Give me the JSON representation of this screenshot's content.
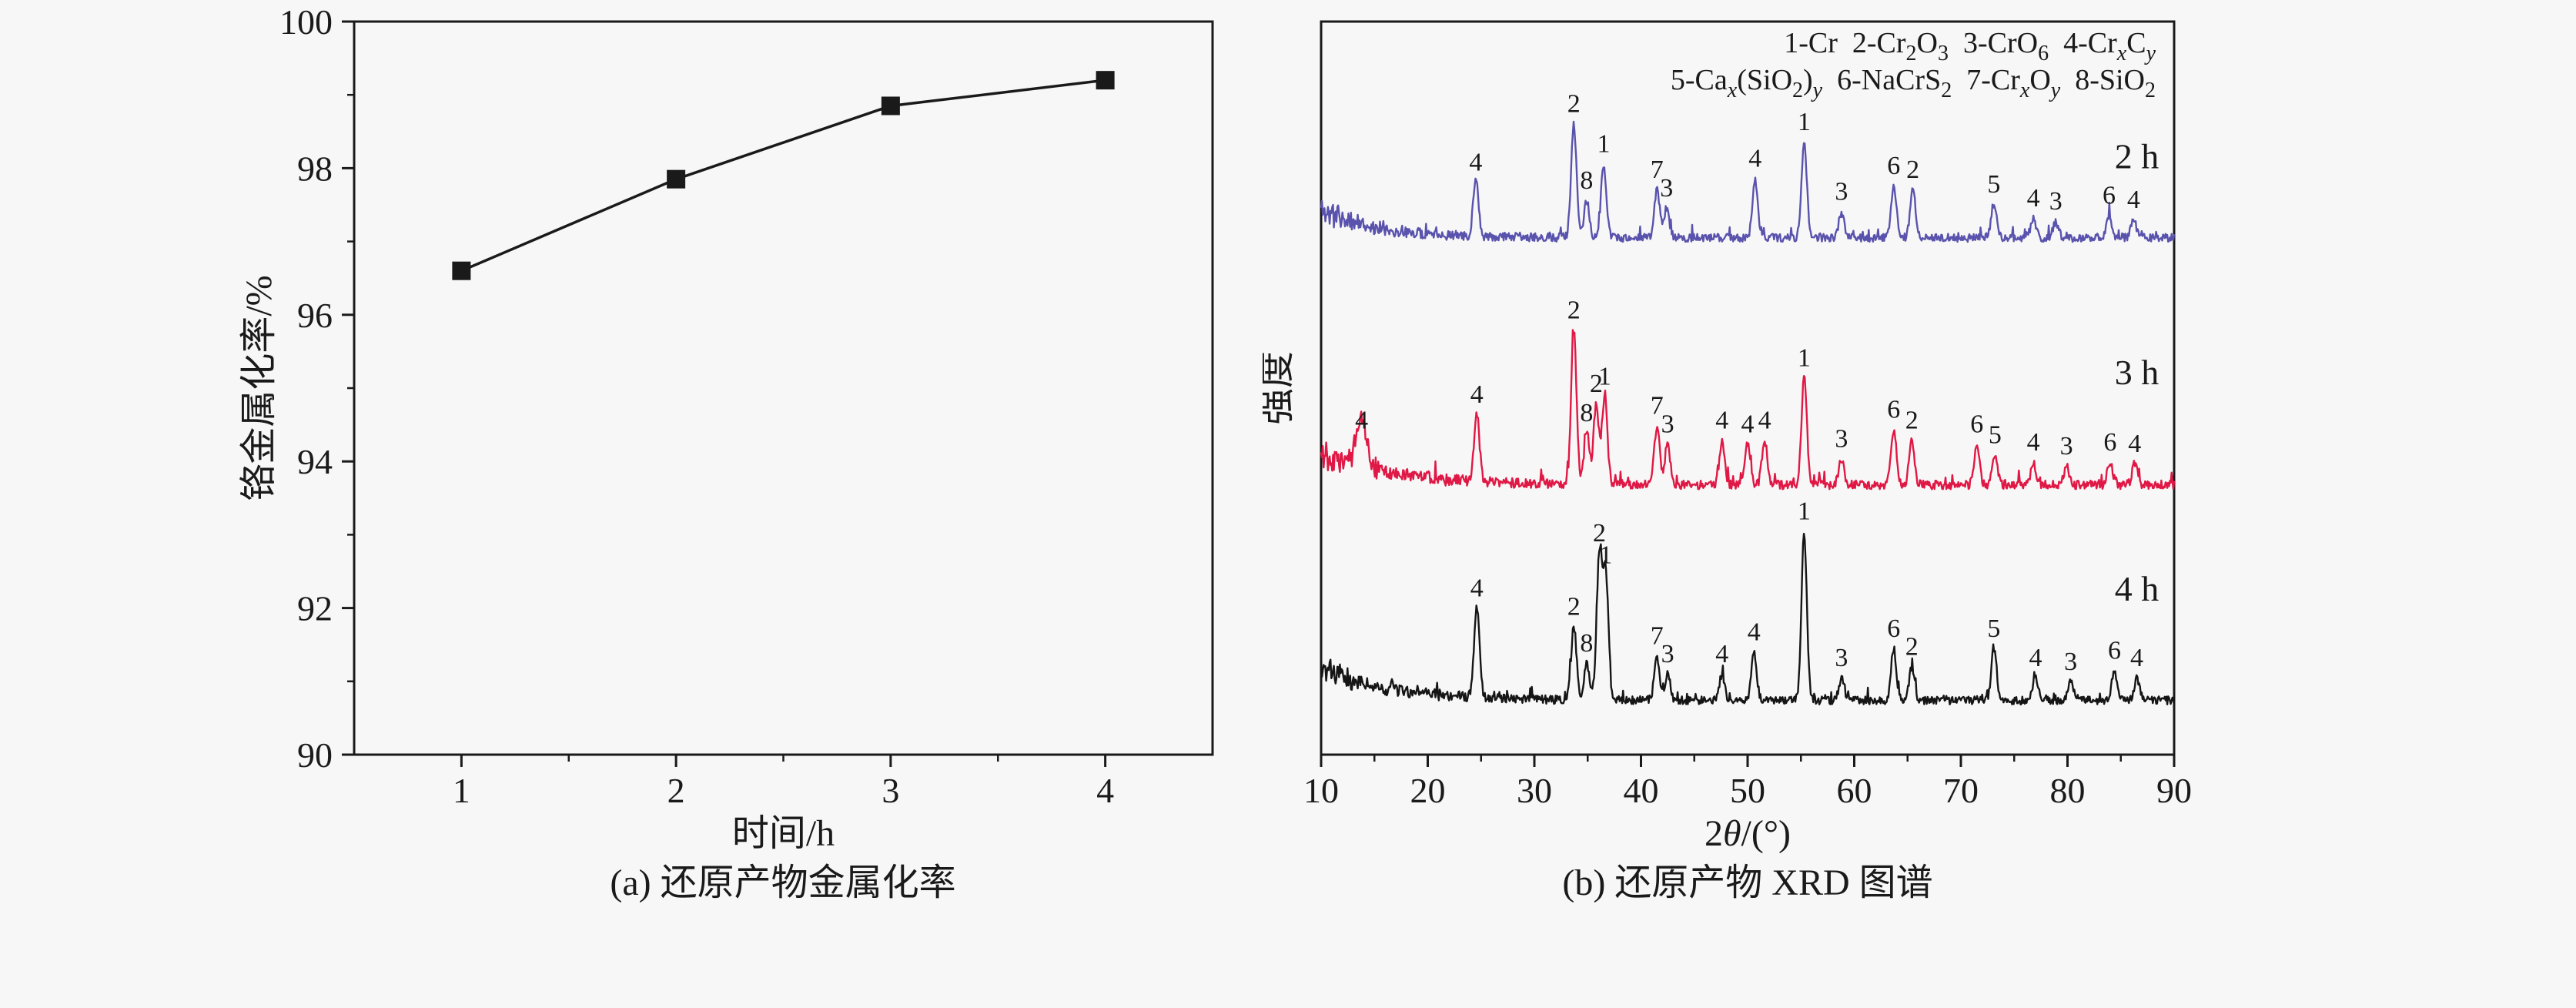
{
  "page": {
    "background": "#f7f7f7",
    "text_color": "#1a1a1a"
  },
  "chart_data": [
    {
      "id": "metallization-rate",
      "type": "line",
      "caption": "(a) 还原产物金属化率",
      "xlabel": "时间/h",
      "ylabel": "铬金属化率/%",
      "x": [
        1,
        2,
        3,
        4
      ],
      "values": [
        96.6,
        97.85,
        98.85,
        99.2
      ],
      "xlim": [
        0.5,
        4.5
      ],
      "ylim": [
        90,
        100
      ],
      "xticks": [
        1,
        2,
        3,
        4
      ],
      "yticks": [
        90,
        92,
        94,
        96,
        98,
        100
      ],
      "y_minor_ticks": [
        91,
        93,
        95,
        97,
        99
      ],
      "x_minor_ticks": [
        1.5,
        2.5,
        3.5
      ],
      "grid": false,
      "legend_position": "none",
      "marker": "square",
      "line_color": "#1a1a1a"
    },
    {
      "id": "xrd-patterns",
      "type": "line",
      "variant": "xrd",
      "caption": "(b) 还原产物 XRD 图谱",
      "xlabel_plain": "2θ/(°)",
      "xlabel_segments": [
        {
          "t": "2"
        },
        {
          "t": "θ",
          "it": true
        },
        {
          "t": "/(°)"
        }
      ],
      "ylabel": "强度",
      "xlim": [
        10,
        90
      ],
      "xticks": [
        10,
        20,
        30,
        40,
        50,
        60,
        70,
        80,
        90
      ],
      "x_minor_ticks": [
        15,
        25,
        35,
        45,
        55,
        65,
        75,
        85
      ],
      "grid": false,
      "legend_plain": [
        "1-Cr  2-Cr2O3  3-CrO6  4-CrxCy",
        "5-Cax(SiO2)y  6-NaCrS2  7-CrxOy  8-SiO2"
      ],
      "legend_lines": [
        {
          "segments": [
            {
              "t": "1-Cr  2-Cr"
            },
            {
              "t": "2",
              "sub": true
            },
            {
              "t": "O"
            },
            {
              "t": "3",
              "sub": true
            },
            {
              "t": "  3-CrO"
            },
            {
              "t": "6",
              "sub": true
            },
            {
              "t": "  4-Cr"
            },
            {
              "t": "x",
              "sub": true,
              "it": true
            },
            {
              "t": "C"
            },
            {
              "t": "y",
              "sub": true,
              "it": true
            }
          ]
        },
        {
          "segments": [
            {
              "t": "5-Ca"
            },
            {
              "t": "x",
              "sub": true,
              "it": true
            },
            {
              "t": "(SiO"
            },
            {
              "t": "2",
              "sub": true
            },
            {
              "t": ")"
            },
            {
              "t": "y",
              "sub": true,
              "it": true
            },
            {
              "t": "  6-NaCrS"
            },
            {
              "t": "2",
              "sub": true
            },
            {
              "t": "  7-Cr"
            },
            {
              "t": "x",
              "sub": true,
              "it": true
            },
            {
              "t": "O"
            },
            {
              "t": "y",
              "sub": true,
              "it": true
            },
            {
              "t": "  8-SiO"
            },
            {
              "t": "2",
              "sub": true
            }
          ]
        }
      ],
      "series": [
        {
          "name": "2 h",
          "color": "#5a53ad",
          "baseline": 70.5,
          "noise": 0.55,
          "bg_amp": 4.0,
          "bg_tau": 5,
          "seed": 11,
          "name_x": 86.5,
          "name_y": 80,
          "peaks": [
            [
              24.5,
              7.5,
              "4"
            ],
            [
              33.7,
              15.5,
              "2"
            ],
            [
              34.9,
              5.0,
              "8"
            ],
            [
              36.5,
              10.0,
              "1"
            ],
            [
              41.5,
              6.5,
              "7"
            ],
            [
              42.4,
              4.0,
              "3"
            ],
            [
              50.7,
              8.0,
              "4"
            ],
            [
              55.3,
              13.0,
              "1"
            ],
            [
              58.8,
              3.5,
              "3"
            ],
            [
              63.7,
              7.0,
              "6"
            ],
            [
              65.5,
              6.5,
              "2"
            ],
            [
              73.1,
              4.5,
              "5"
            ],
            [
              76.8,
              2.6,
              "4"
            ],
            [
              78.9,
              2.2,
              "3"
            ],
            [
              83.9,
              3.0,
              "6"
            ],
            [
              86.2,
              2.4,
              "4"
            ]
          ]
        },
        {
          "name": "3 h",
          "color": "#e01845",
          "baseline": 36.8,
          "noise": 0.6,
          "bg_amp": 5.0,
          "bg_tau": 6,
          "seed": 22,
          "name_x": 86.5,
          "name_y": 50.5,
          "peaks": [
            [
              13.8,
              6.0,
              "4",
              0.5
            ],
            [
              24.6,
              9.5,
              "4"
            ],
            [
              33.7,
              21.0,
              "2"
            ],
            [
              34.9,
              7.0,
              "8"
            ],
            [
              35.8,
              11.0,
              "2"
            ],
            [
              36.6,
              12.0,
              "1"
            ],
            [
              41.5,
              8.0,
              "7"
            ],
            [
              42.5,
              5.5,
              "3"
            ],
            [
              47.6,
              6.0,
              "4"
            ],
            [
              50.0,
              5.5,
              "4"
            ],
            [
              51.6,
              6.0,
              "4"
            ],
            [
              55.3,
              14.5,
              "1"
            ],
            [
              58.8,
              3.5,
              "3"
            ],
            [
              63.7,
              7.5,
              "6"
            ],
            [
              65.4,
              6.0,
              "2"
            ],
            [
              71.5,
              5.5,
              "6"
            ],
            [
              73.2,
              4.0,
              "5"
            ],
            [
              76.8,
              3.0,
              "4"
            ],
            [
              79.9,
              2.5,
              "3"
            ],
            [
              84.0,
              3.0,
              "6"
            ],
            [
              86.3,
              2.8,
              "4"
            ]
          ]
        },
        {
          "name": "4 h",
          "color": "#151515",
          "baseline": 7.4,
          "noise": 0.55,
          "bg_amp": 4.5,
          "bg_tau": 6,
          "seed": 33,
          "name_x": 86.5,
          "name_y": 21,
          "peaks": [
            [
              24.6,
              12.5,
              "4"
            ],
            [
              33.7,
              10.0,
              "2"
            ],
            [
              34.9,
              5.0,
              "8"
            ],
            [
              36.1,
              20.0,
              "2"
            ],
            [
              36.7,
              17.0,
              "1"
            ],
            [
              41.5,
              6.0,
              "7"
            ],
            [
              42.5,
              3.5,
              "3"
            ],
            [
              47.6,
              3.5,
              "4"
            ],
            [
              50.6,
              6.5,
              "4"
            ],
            [
              55.3,
              23.0,
              "1"
            ],
            [
              58.8,
              3.0,
              "3"
            ],
            [
              63.7,
              7.0,
              "6"
            ],
            [
              65.4,
              4.5,
              "2"
            ],
            [
              73.1,
              7.0,
              "5"
            ],
            [
              77.0,
              3.0,
              "4"
            ],
            [
              80.3,
              2.5,
              "3"
            ],
            [
              84.4,
              4.0,
              "6"
            ],
            [
              86.5,
              3.0,
              "4"
            ]
          ]
        }
      ]
    }
  ]
}
